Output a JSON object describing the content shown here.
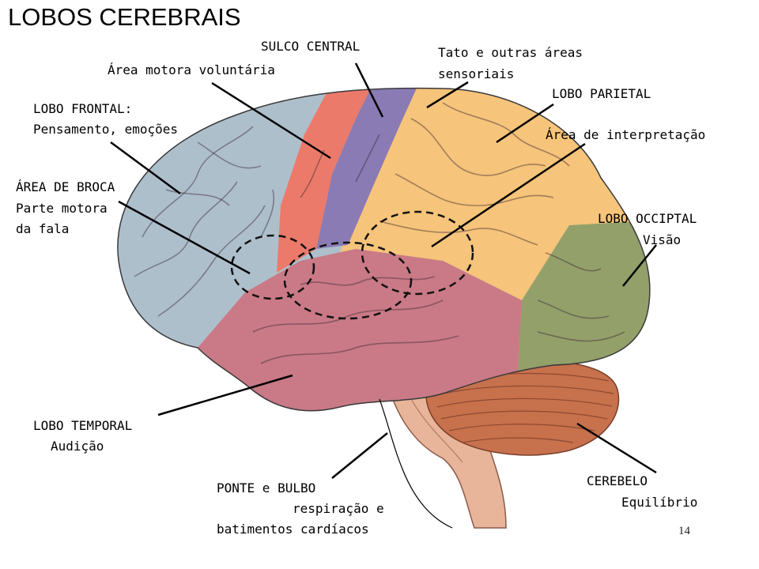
{
  "title": "LOBOS CEREBRAIS",
  "page_number": "14",
  "labels": {
    "sulco_central": "SULCO CENTRAL",
    "area_motora": "Área motora voluntária",
    "tato_l1": "Tato e outras áreas",
    "tato_l2": "sensoriais",
    "lobo_parietal": "LOBO PARIETAL",
    "lobo_frontal_l1": "LOBO FRONTAL:",
    "lobo_frontal_l2": "Pensamento, emoções",
    "area_interpretacao": "Área de interpretação",
    "broca_l1": "ÁREA DE BROCA",
    "broca_l2": "Parte motora",
    "broca_l3": "da fala",
    "occipital_l1": "LOBO OCCIPTAL",
    "occipital_l2": "Visão",
    "temporal_l1": "LOBO TEMPORAL",
    "temporal_l2": "Audição",
    "ponte_l1": "PONTE e BULBO",
    "ponte_l2": "respiração e",
    "ponte_l3": "batimentos cardíacos",
    "cerebelo_l1": "CEREBELO",
    "cerebelo_l2": "Equilíbrio"
  },
  "colors": {
    "frontal": "#aebfcc",
    "motor": "#ec7a6a",
    "sensory": "#8a7bb4",
    "parietal": "#f6c47a",
    "occipital": "#93a06a",
    "temporal": "#c97a86",
    "cerebellum": "#c7714d",
    "brainstem": "#e8b59a"
  }
}
